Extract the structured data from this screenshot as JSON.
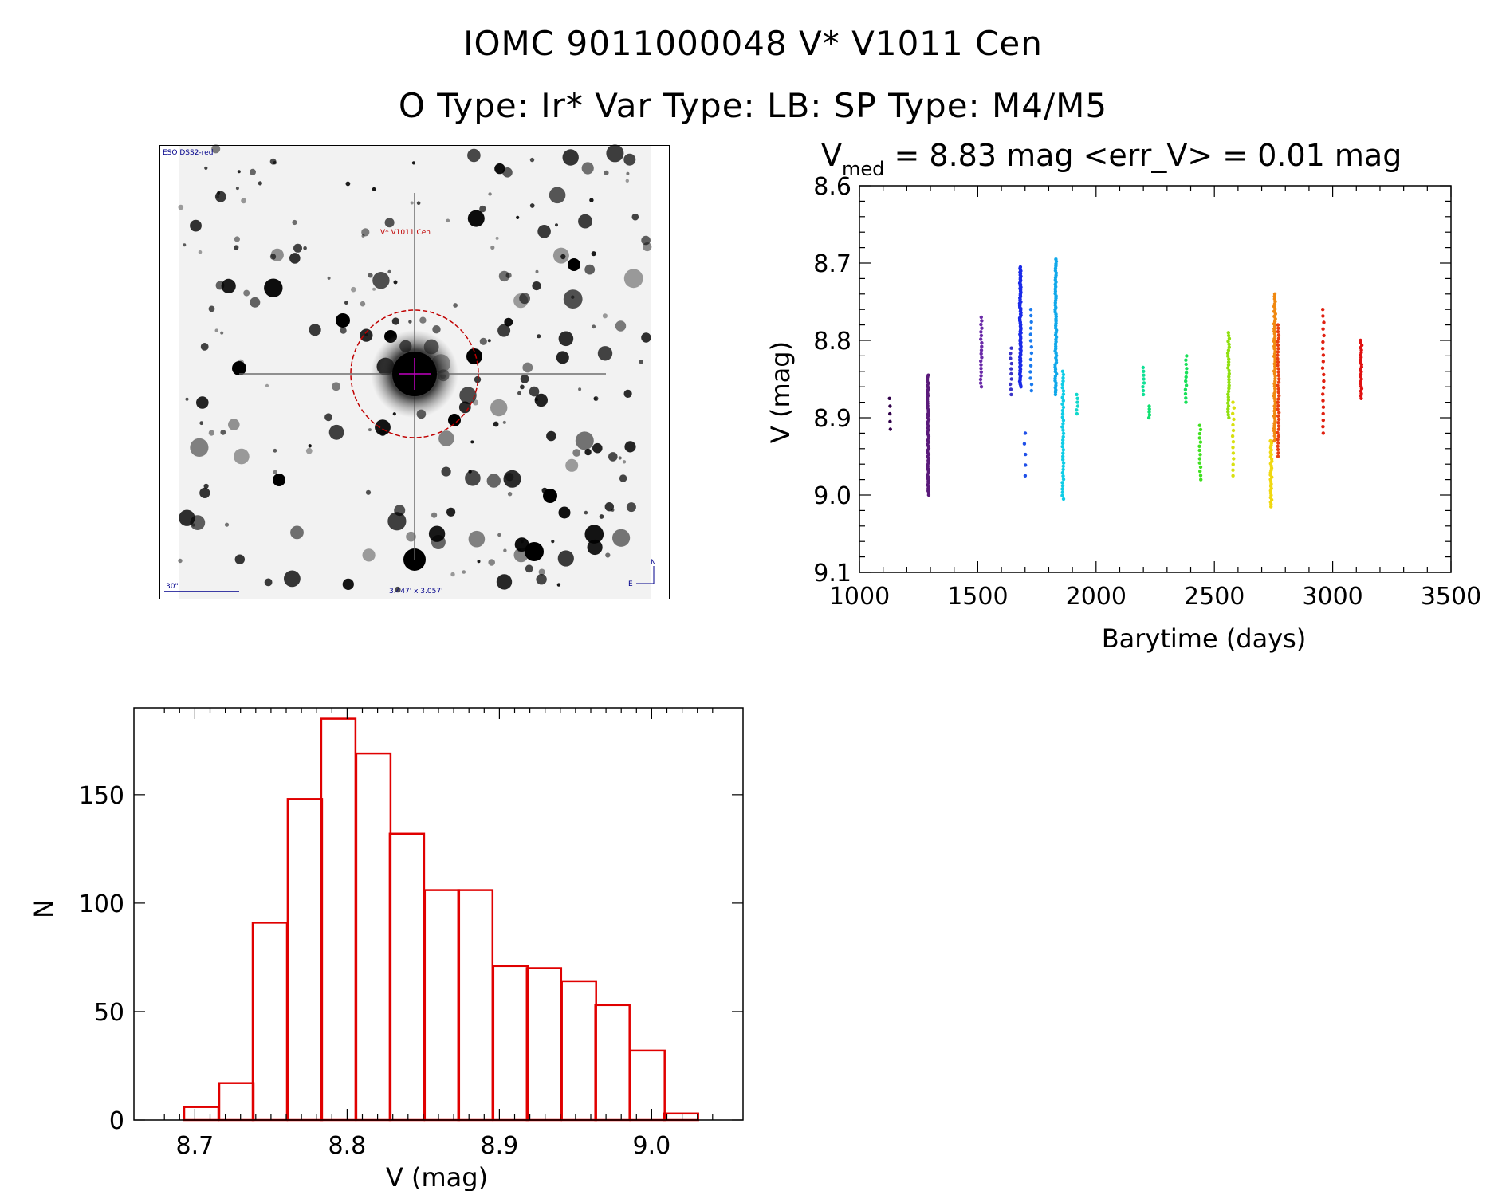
{
  "header": {
    "line1": "IOMC 9011000048    V* V1011 Cen",
    "line2": "O Type: Ir*  Var Type: LB:  SP Type: M4/M5"
  },
  "thumbnail": {
    "survey_label": "ESO DSS2-red",
    "target_label": "V* V1011 Cen",
    "scale_label": "30\"",
    "fov_label": "3.447' x 3.057'",
    "north_label": "N",
    "east_label": "E",
    "colors": {
      "target": "#c00000",
      "marker": "#c000c0",
      "annot": "#00008b"
    }
  },
  "chart_data": [
    {
      "type": "scatter",
      "title_parts": {
        "prefix": "V",
        "subscript": "med",
        "suffix": " = 8.83 mag <err_V> = 0.01 mag"
      },
      "xlabel": "Barytime (days)",
      "ylabel": "V (mag)",
      "xlim": [
        1000,
        3500
      ],
      "ylim": [
        8.6,
        9.1
      ],
      "y_inverted": true,
      "xticks": [
        1000,
        1500,
        2000,
        2500,
        3000,
        3500
      ],
      "yticks": [
        "8.6",
        "8.7",
        "8.8",
        "8.9",
        "9.0",
        "9.1"
      ],
      "color_scale": "rainbow by time (purple to red)",
      "groups": [
        {
          "x": 1130,
          "y_min": 8.875,
          "y_max": 8.915,
          "n": 5,
          "color": "#30004a"
        },
        {
          "x": 1290,
          "y_min": 8.845,
          "y_max": 9.0,
          "n": 60,
          "color": "#5a1a7a"
        },
        {
          "x": 1515,
          "y_min": 8.77,
          "y_max": 8.86,
          "n": 20,
          "color": "#6a2aa8"
        },
        {
          "x": 1640,
          "y_min": 8.81,
          "y_max": 8.87,
          "n": 10,
          "color": "#3a34c8"
        },
        {
          "x": 1680,
          "y_min": 8.705,
          "y_max": 8.86,
          "n": 90,
          "color": "#1a2ae8"
        },
        {
          "x": 1700,
          "y_min": 8.92,
          "y_max": 8.975,
          "n": 5,
          "color": "#2050e8"
        },
        {
          "x": 1725,
          "y_min": 8.76,
          "y_max": 8.865,
          "n": 14,
          "color": "#1a7aee"
        },
        {
          "x": 1830,
          "y_min": 8.695,
          "y_max": 8.87,
          "n": 60,
          "color": "#10a8ea"
        },
        {
          "x": 1860,
          "y_min": 8.84,
          "y_max": 9.005,
          "n": 40,
          "color": "#10cce6"
        },
        {
          "x": 1920,
          "y_min": 8.87,
          "y_max": 8.895,
          "n": 6,
          "color": "#10d8cc"
        },
        {
          "x": 2200,
          "y_min": 8.835,
          "y_max": 8.87,
          "n": 8,
          "color": "#10e096"
        },
        {
          "x": 2225,
          "y_min": 8.885,
          "y_max": 8.9,
          "n": 5,
          "color": "#10e070"
        },
        {
          "x": 2380,
          "y_min": 8.82,
          "y_max": 8.88,
          "n": 12,
          "color": "#18e058"
        },
        {
          "x": 2440,
          "y_min": 8.91,
          "y_max": 8.98,
          "n": 14,
          "color": "#40e020"
        },
        {
          "x": 2560,
          "y_min": 8.79,
          "y_max": 8.9,
          "n": 30,
          "color": "#90e010"
        },
        {
          "x": 2580,
          "y_min": 8.88,
          "y_max": 8.975,
          "n": 14,
          "color": "#d8e010"
        },
        {
          "x": 2740,
          "y_min": 8.93,
          "y_max": 9.015,
          "n": 30,
          "color": "#f0d810"
        },
        {
          "x": 2755,
          "y_min": 8.74,
          "y_max": 8.93,
          "n": 60,
          "color": "#f08810"
        },
        {
          "x": 2770,
          "y_min": 8.78,
          "y_max": 8.95,
          "n": 40,
          "color": "#e84010"
        },
        {
          "x": 2960,
          "y_min": 8.76,
          "y_max": 8.92,
          "n": 20,
          "color": "#e02010"
        },
        {
          "x": 3120,
          "y_min": 8.8,
          "y_max": 8.875,
          "n": 25,
          "color": "#e01010"
        }
      ]
    },
    {
      "type": "bar",
      "subtype": "histogram",
      "xlabel": "V (mag)",
      "ylabel": "N",
      "xlim": [
        8.66,
        9.06
      ],
      "ylim": [
        0,
        190
      ],
      "xticks": [
        "8.7",
        "8.8",
        "8.9",
        "9.0"
      ],
      "yticks": [
        "0",
        "50",
        "100",
        "150"
      ],
      "bin_width": 0.0225,
      "bins": [
        {
          "left": 8.693,
          "count": 6
        },
        {
          "left": 8.716,
          "count": 17
        },
        {
          "left": 8.738,
          "count": 91
        },
        {
          "left": 8.761,
          "count": 148
        },
        {
          "left": 8.783,
          "count": 185
        },
        {
          "left": 8.806,
          "count": 169
        },
        {
          "left": 8.828,
          "count": 132
        },
        {
          "left": 8.851,
          "count": 106
        },
        {
          "left": 8.873,
          "count": 106
        },
        {
          "left": 8.896,
          "count": 71
        },
        {
          "left": 8.918,
          "count": 70
        },
        {
          "left": 8.941,
          "count": 64
        },
        {
          "left": 8.963,
          "count": 53
        },
        {
          "left": 8.986,
          "count": 32
        },
        {
          "left": 9.008,
          "count": 3
        }
      ],
      "bar_color": "#e00000"
    }
  ]
}
